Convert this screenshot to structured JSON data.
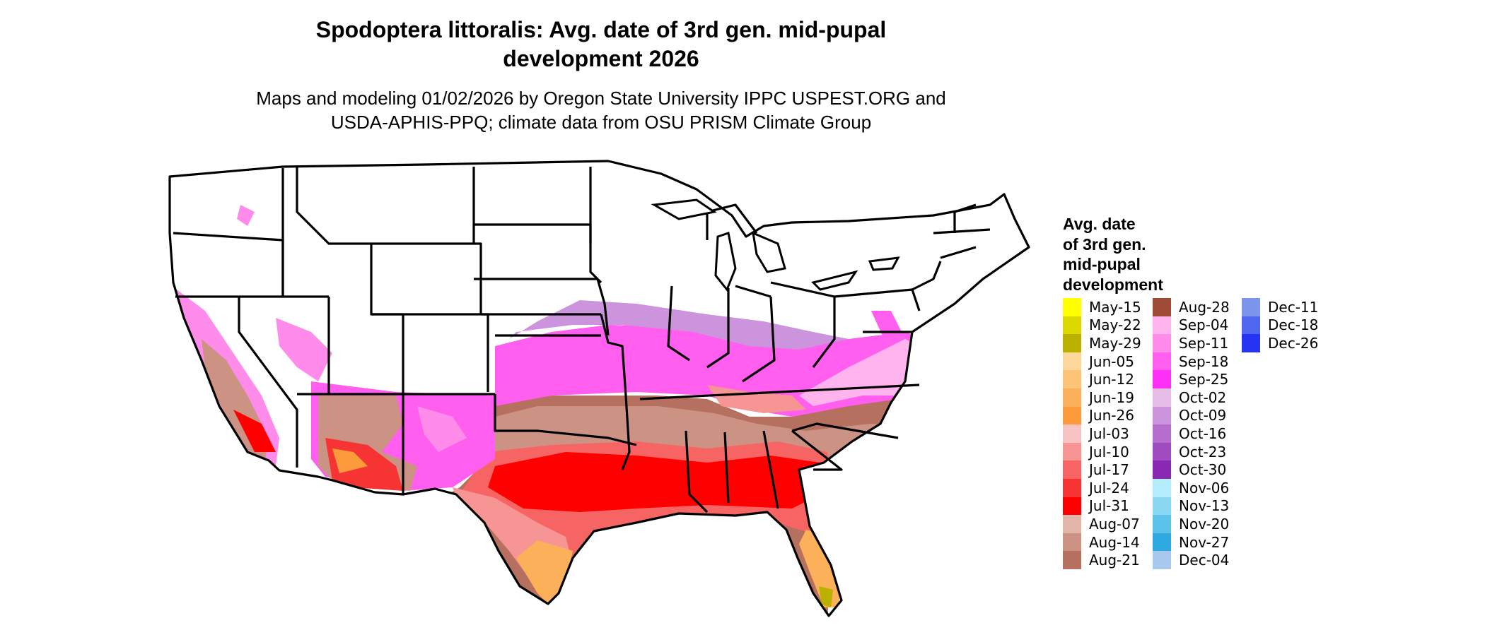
{
  "figure": {
    "title_line1": "Spodoptera littoralis: Avg. date of 3rd gen. mid-pupal",
    "title_line2": "development 2026",
    "subtitle_line1": "Maps and modeling 01/02/2026 by Oregon State University IPPC USPEST.ORG and",
    "subtitle_line2": "USDA-APHIS-PPQ; climate data from OSU PRISM Climate Group"
  },
  "legend": {
    "title_lines": [
      "Avg. date",
      "of 3rd gen.",
      "mid-pupal",
      "development"
    ],
    "columns": [
      [
        {
          "label": "May-15",
          "color": "#FFFF00"
        },
        {
          "label": "May-22",
          "color": "#DDD800"
        },
        {
          "label": "May-29",
          "color": "#BBB000"
        },
        {
          "label": "Jun-05",
          "color": "#FDD89A"
        },
        {
          "label": "Jun-12",
          "color": "#FDC477"
        },
        {
          "label": "Jun-19",
          "color": "#FDB05A"
        },
        {
          "label": "Jun-26",
          "color": "#FD9A3C"
        },
        {
          "label": "Jul-03",
          "color": "#F7C4C4"
        },
        {
          "label": "Jul-10",
          "color": "#F79494"
        },
        {
          "label": "Jul-17",
          "color": "#F76464"
        },
        {
          "label": "Jul-24",
          "color": "#F73434"
        },
        {
          "label": "Jul-31",
          "color": "#FF0000"
        },
        {
          "label": "Aug-07",
          "color": "#E2B6A8"
        },
        {
          "label": "Aug-14",
          "color": "#CC9284"
        },
        {
          "label": "Aug-21",
          "color": "#B67060"
        }
      ],
      [
        {
          "label": "Aug-28",
          "color": "#A04A38"
        },
        {
          "label": "Sep-04",
          "color": "#FFB4EE"
        },
        {
          "label": "Sep-11",
          "color": "#FF8CEA"
        },
        {
          "label": "Sep-18",
          "color": "#FF5EEE"
        },
        {
          "label": "Sep-25",
          "color": "#FF30F6"
        },
        {
          "label": "Oct-02",
          "color": "#E6BCE8"
        },
        {
          "label": "Oct-09",
          "color": "#CC94DC"
        },
        {
          "label": "Oct-16",
          "color": "#B66ECE"
        },
        {
          "label": "Oct-23",
          "color": "#A04CC0"
        },
        {
          "label": "Oct-30",
          "color": "#8A2AB2"
        },
        {
          "label": "Nov-06",
          "color": "#B4EEFE"
        },
        {
          "label": "Nov-13",
          "color": "#8AD8F2"
        },
        {
          "label": "Nov-20",
          "color": "#5CC2EA"
        },
        {
          "label": "Nov-27",
          "color": "#2EAAE0"
        },
        {
          "label": "Dec-04",
          "color": "#A8C8EE"
        }
      ],
      [
        {
          "label": "Dec-11",
          "color": "#7C94EC"
        },
        {
          "label": "Dec-18",
          "color": "#5066EE"
        },
        {
          "label": "Dec-26",
          "color": "#2434F2"
        }
      ]
    ]
  }
}
